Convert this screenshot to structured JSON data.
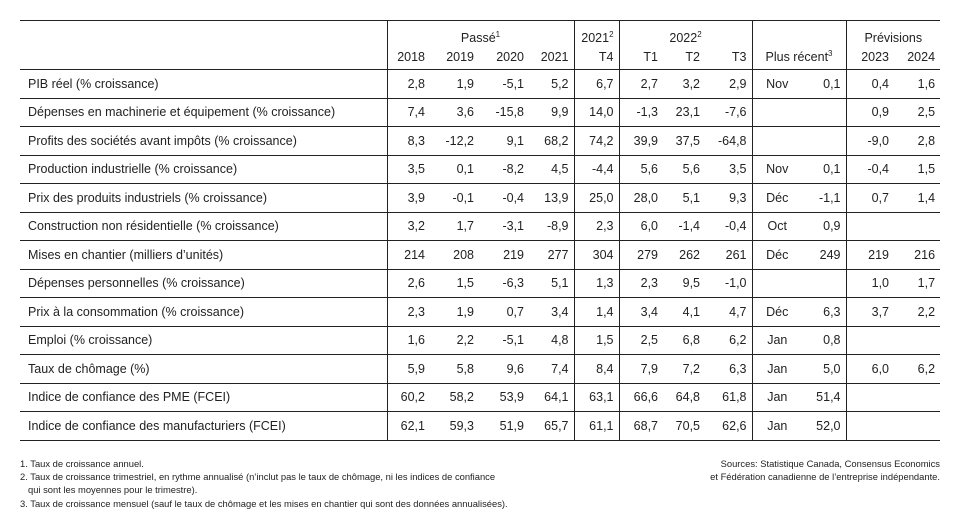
{
  "header": {
    "passe": "Passé",
    "passe_sup": "1",
    "y2021": "2021",
    "y2021_sup": "2",
    "y2022": "2022",
    "y2022_sup": "2",
    "previsions": "Prévisions",
    "plus_recent": "Plus récent",
    "plus_recent_sup": "3",
    "cols": [
      "2018",
      "2019",
      "2020",
      "2021",
      "T4",
      "T1",
      "T2",
      "T3",
      "2023",
      "2024"
    ]
  },
  "rows": [
    {
      "label": "PIB réel (% croissance)",
      "vals": [
        "2,8",
        "1,9",
        "-5,1",
        "5,2",
        "6,7",
        "2,7",
        "3,2",
        "2,9"
      ],
      "recent_month": "Nov",
      "recent_val": "0,1",
      "f2023": "0,4",
      "f2024": "1,6"
    },
    {
      "label": "Dépenses en machinerie et équipement (% croissance)",
      "vals": [
        "7,4",
        "3,6",
        "-15,8",
        "9,9",
        "14,0",
        "-1,3",
        "23,1",
        "-7,6"
      ],
      "recent_month": "",
      "recent_val": "",
      "f2023": "0,9",
      "f2024": "2,5"
    },
    {
      "label": "Profits des sociétés avant impôts (% croissance)",
      "vals": [
        "8,3",
        "-12,2",
        "9,1",
        "68,2",
        "74,2",
        "39,9",
        "37,5",
        "-64,8"
      ],
      "recent_month": "",
      "recent_val": "",
      "f2023": "-9,0",
      "f2024": "2,8"
    },
    {
      "label": "Production industrielle (% croissance)",
      "vals": [
        "3,5",
        "0,1",
        "-8,2",
        "4,5",
        "-4,4",
        "5,6",
        "5,6",
        "3,5"
      ],
      "recent_month": "Nov",
      "recent_val": "0,1",
      "f2023": "-0,4",
      "f2024": "1,5"
    },
    {
      "label": "Prix des produits industriels (% croissance)",
      "vals": [
        "3,9",
        "-0,1",
        "-0,4",
        "13,9",
        "25,0",
        "28,0",
        "5,1",
        "9,3"
      ],
      "recent_month": "Déc",
      "recent_val": "-1,1",
      "f2023": "0,7",
      "f2024": "1,4"
    },
    {
      "label": "Construction non résidentielle (% croissance)",
      "vals": [
        "3,2",
        "1,7",
        "-3,1",
        "-8,9",
        "2,3",
        "6,0",
        "-1,4",
        "-0,4"
      ],
      "recent_month": "Oct",
      "recent_val": "0,9",
      "f2023": "",
      "f2024": ""
    },
    {
      "label": "Mises en chantier (milliers d’unités)",
      "vals": [
        "214",
        "208",
        "219",
        "277",
        "304",
        "279",
        "262",
        "261"
      ],
      "recent_month": "Déc",
      "recent_val": "249",
      "f2023": "219",
      "f2024": "216"
    },
    {
      "label": "Dépenses personnelles (% croissance)",
      "vals": [
        "2,6",
        "1,5",
        "-6,3",
        "5,1",
        "1,3",
        "2,3",
        "9,5",
        "-1,0"
      ],
      "recent_month": "",
      "recent_val": "",
      "f2023": "1,0",
      "f2024": "1,7"
    },
    {
      "label": "Prix à la consommation (% croissance)",
      "vals": [
        "2,3",
        "1,9",
        "0,7",
        "3,4",
        "1,4",
        "3,4",
        "4,1",
        "4,7"
      ],
      "recent_month": "Déc",
      "recent_val": "6,3",
      "f2023": "3,7",
      "f2024": "2,2"
    },
    {
      "label": "Emploi (% croissance)",
      "vals": [
        "1,6",
        "2,2",
        "-5,1",
        "4,8",
        "1,5",
        "2,5",
        "6,8",
        "6,2"
      ],
      "recent_month": "Jan",
      "recent_val": "0,8",
      "f2023": "",
      "f2024": ""
    },
    {
      "label": "Taux de chômage (%)",
      "vals": [
        "5,9",
        "5,8",
        "9,6",
        "7,4",
        "8,4",
        "7,9",
        "7,2",
        "6,3"
      ],
      "recent_month": "Jan",
      "recent_val": "5,0",
      "f2023": "6,0",
      "f2024": "6,2"
    },
    {
      "label": "Indice de confiance des PME (FCEI)",
      "vals": [
        "60,2",
        "58,2",
        "53,9",
        "64,1",
        "63,1",
        "66,6",
        "64,8",
        "61,8"
      ],
      "recent_month": "Jan",
      "recent_val": "51,4",
      "f2023": "",
      "f2024": ""
    },
    {
      "label": "Indice de confiance des manufacturiers (FCEI)",
      "vals": [
        "62,1",
        "59,3",
        "51,9",
        "65,7",
        "61,1",
        "68,7",
        "70,5",
        "62,6"
      ],
      "recent_month": "Jan",
      "recent_val": "52,0",
      "f2023": "",
      "f2024": ""
    }
  ],
  "notes": [
    "1. Taux de croissance annuel.",
    "2. Taux de croissance trimestriel, en rythme annualisé (n’inclut pas le taux de chômage, ni les indices de confiance",
    "qui sont les moyennes pour le trimestre).",
    "3. Taux de croissance mensuel (sauf le taux de chômage et les mises en chantier qui sont des données annualisées)."
  ],
  "sources": [
    "Sources: Statistique Canada, Consensus Economics",
    "et Fédération canadienne de l’entreprise indépendante."
  ]
}
